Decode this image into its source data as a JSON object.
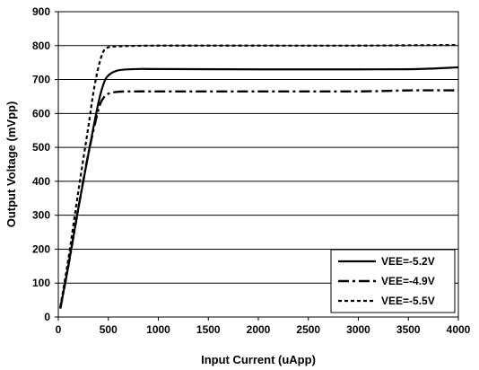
{
  "chart_data": {
    "type": "line",
    "xlabel": "Input Current (uApp)",
    "ylabel": "Output Voltage (mVpp)",
    "xlim": [
      0,
      4000
    ],
    "ylim": [
      0,
      900
    ],
    "xticks": [
      0,
      500,
      1000,
      1500,
      2000,
      2500,
      3000,
      3500,
      4000
    ],
    "yticks": [
      0,
      100,
      200,
      300,
      400,
      500,
      600,
      700,
      800,
      900
    ],
    "grid": "horizontal",
    "legend_position": "bottom-right",
    "series": [
      {
        "name": "VEE=-5.2V",
        "style": "solid",
        "points": [
          [
            20,
            25
          ],
          [
            100,
            150
          ],
          [
            200,
            320
          ],
          [
            300,
            480
          ],
          [
            400,
            630
          ],
          [
            450,
            685
          ],
          [
            500,
            712
          ],
          [
            600,
            727
          ],
          [
            800,
            731
          ],
          [
            1000,
            731
          ],
          [
            2000,
            730
          ],
          [
            3000,
            730
          ],
          [
            3600,
            731
          ],
          [
            4000,
            736
          ]
        ]
      },
      {
        "name": "VEE=-4.9V",
        "style": "dash-dot",
        "points": [
          [
            20,
            25
          ],
          [
            100,
            150
          ],
          [
            200,
            320
          ],
          [
            300,
            480
          ],
          [
            400,
            610
          ],
          [
            450,
            645
          ],
          [
            500,
            658
          ],
          [
            600,
            664
          ],
          [
            800,
            665
          ],
          [
            1000,
            665
          ],
          [
            2000,
            665
          ],
          [
            3000,
            665
          ],
          [
            3500,
            668
          ],
          [
            4000,
            668
          ]
        ]
      },
      {
        "name": "VEE=-5.5V",
        "style": "dotted",
        "points": [
          [
            20,
            30
          ],
          [
            100,
            170
          ],
          [
            200,
            370
          ],
          [
            300,
            560
          ],
          [
            350,
            660
          ],
          [
            400,
            735
          ],
          [
            450,
            782
          ],
          [
            500,
            795
          ],
          [
            600,
            798
          ],
          [
            1000,
            800
          ],
          [
            2000,
            800
          ],
          [
            3000,
            800
          ],
          [
            4000,
            802
          ]
        ]
      }
    ]
  }
}
